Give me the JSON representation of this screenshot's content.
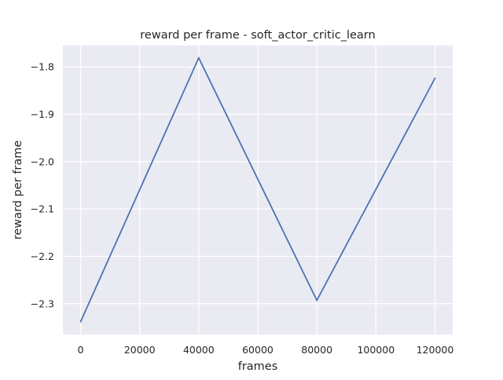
{
  "chart_data": {
    "type": "line",
    "title": "reward per frame - soft_actor_critic_learn",
    "xlabel": "frames",
    "ylabel": "reward per frame",
    "x": [
      0,
      40000,
      80000,
      120000
    ],
    "series": [
      {
        "values": [
          -2.338,
          -1.781,
          -2.293,
          -1.824
        ],
        "color": "#4c72b0"
      }
    ],
    "xlim": [
      -6000,
      126000
    ],
    "ylim": [
      -2.365,
      -1.755
    ],
    "xticks": [
      0,
      20000,
      40000,
      60000,
      80000,
      100000,
      120000
    ],
    "xtick_labels": [
      "0",
      "20000",
      "40000",
      "60000",
      "80000",
      "100000",
      "120000"
    ],
    "yticks": [
      -2.3,
      -2.2,
      -2.1,
      -2.0,
      -1.9,
      -1.8
    ],
    "ytick_labels": [
      "−2.3",
      "−2.2",
      "−2.1",
      "−2.0",
      "−1.9",
      "−1.8"
    ],
    "grid": true,
    "style": {
      "background": "#eaeaf2",
      "grid_color": "#ffffff",
      "text_color": "#262626"
    }
  }
}
